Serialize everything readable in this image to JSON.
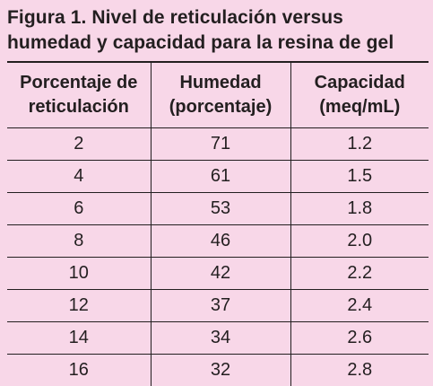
{
  "title": [
    "Figura 1. Nivel de reticulación versus",
    "humedad y capacidad para la resina de gel"
  ],
  "table": {
    "headers": [
      [
        "Porcentaje de",
        "reticulación"
      ],
      [
        "Humedad",
        "(porcentaje)"
      ],
      [
        "Capacidad",
        "(meq/mL)"
      ]
    ],
    "rows": [
      [
        "2",
        "71",
        "1.2"
      ],
      [
        "4",
        "61",
        "1.5"
      ],
      [
        "6",
        "53",
        "1.8"
      ],
      [
        "8",
        "46",
        "2.0"
      ],
      [
        "10",
        "42",
        "2.2"
      ],
      [
        "12",
        "37",
        "2.4"
      ],
      [
        "14",
        "34",
        "2.6"
      ],
      [
        "16",
        "32",
        "2.8"
      ]
    ]
  }
}
